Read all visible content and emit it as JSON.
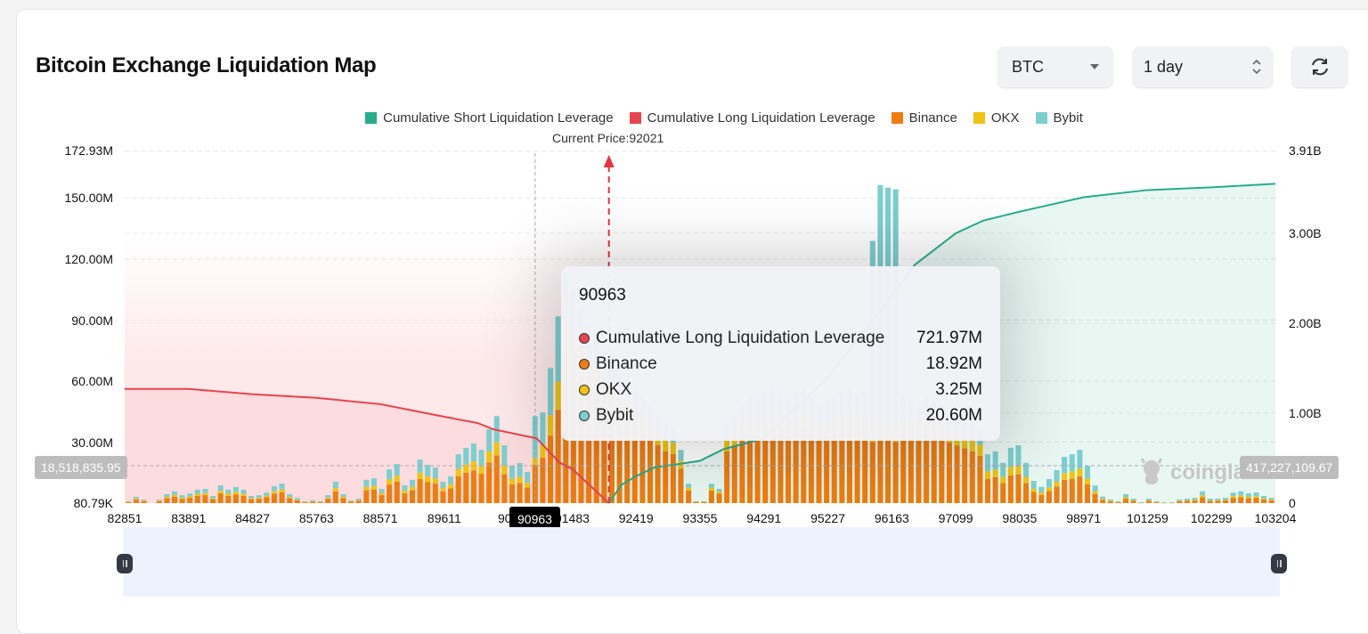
{
  "header": {
    "title": "Bitcoin Exchange Liquidation Map"
  },
  "controls": {
    "coin": "BTC",
    "range": "1 day",
    "refresh_icon": "refresh-icon"
  },
  "colors": {
    "short": "#26ad8c",
    "long": "#e8434f",
    "binance": "#ee7d10",
    "okx": "#f1c40f",
    "bybit": "#7ccfcf"
  },
  "chart_data": {
    "type": "bar",
    "legend": [
      "Cumulative Short Liquidation Leverage",
      "Cumulative Long Liquidation Leverage",
      "Binance",
      "OKX",
      "Bybit"
    ],
    "legend_placement": "top",
    "current_price_label": "Current Price:92021",
    "current_price": 92021,
    "x_ticks": [
      "82851",
      "83891",
      "84827",
      "85763",
      "88571",
      "89611",
      "905",
      "91483",
      "92419",
      "93355",
      "94291",
      "95227",
      "96163",
      "97099",
      "98035",
      "98971",
      "101259",
      "102299",
      "103204"
    ],
    "y_left_ticks": [
      "172.93M",
      "150.00M",
      "120.00M",
      "90.00M",
      "60.00M",
      "30.00M",
      "80.79K"
    ],
    "y_left_range": [
      0,
      172.93
    ],
    "y_left_unit": "M",
    "y_right_ticks": [
      "3.91B",
      "3.00B",
      "2.00B",
      "1.00B",
      "0"
    ],
    "y_right_range": [
      0,
      3.91
    ],
    "y_right_unit": "B",
    "grid": true,
    "series": [
      {
        "name": "Binance",
        "values": [
          0.5,
          1.7,
          0.9,
          0,
          0.9,
          2.4,
          3.1,
          2.1,
          2.6,
          3.6,
          3.9,
          1.9,
          4.8,
          3.6,
          4.3,
          3.6,
          1.9,
          2.1,
          2.9,
          4.6,
          5.3,
          2.4,
          1.4,
          0.5,
          0.7,
          0.5,
          2.1,
          5.8,
          2.4,
          0.7,
          1.2,
          6.3,
          6.7,
          3.9,
          9.1,
          10.6,
          4.8,
          6.3,
          11.8,
          10.3,
          9.6,
          5.8,
          7.2,
          13.2,
          14.9,
          16.1,
          14.4,
          20.0,
          23.5,
          14.2,
          9.2,
          9.9,
          7.7,
          18.92,
          22.3,
          33.2,
          45.9,
          73.8,
          68.2,
          62.5,
          56.8,
          54.0,
          48.3,
          45.4,
          42.6,
          39.8,
          36.9,
          34.1,
          31.3,
          28.4,
          25.5,
          24.1,
          17.0,
          6.2,
          0.6,
          0.6,
          6.2,
          4.6,
          25.5,
          28.4,
          31.3,
          34.1,
          32.7,
          35.5,
          36.9,
          34.1,
          32.7,
          35.5,
          36.9,
          34.1,
          31.3,
          32.7,
          34.1,
          35.5,
          36.9,
          34.1,
          35.5,
          30,
          32,
          31,
          30,
          34.1,
          32.7,
          31.3,
          34.1,
          32.7,
          31.3,
          29.8,
          28.4,
          27.0,
          25.5,
          23.3,
          12.0,
          12.7,
          9.9,
          13.6,
          14.2,
          9.9,
          5.5,
          4.0,
          5.9,
          8.1,
          11.4,
          12.0,
          13.1,
          9.2,
          4.4,
          1.6,
          0.9,
          0.5,
          2.2,
          1.1,
          0.2,
          1.1,
          0.5,
          0.2,
          0.2,
          0.9,
          1.1,
          1.3,
          2.9,
          1.1,
          1.1,
          1.3,
          2.6,
          2.9,
          2.4,
          2.6,
          1.8,
          1.3
        ]
      },
      {
        "name": "OKX",
        "values": [
          0.1,
          0.5,
          0.3,
          0,
          0.3,
          0.7,
          0.9,
          0.6,
          0.7,
          1.0,
          1.0,
          0.5,
          1.3,
          1.0,
          1.2,
          1.0,
          0.5,
          0.6,
          0.8,
          1.2,
          1.4,
          0.7,
          0.4,
          0.1,
          0.2,
          0.1,
          0.6,
          1.6,
          0.7,
          0.2,
          0.3,
          1.7,
          1.8,
          1.0,
          2.5,
          2.9,
          1.3,
          1.7,
          3.2,
          2.8,
          2.6,
          1.6,
          2.0,
          3.6,
          4.1,
          4.4,
          3.9,
          5.4,
          6.4,
          4.3,
          2.8,
          3.0,
          2.3,
          3.25,
          6.7,
          10.0,
          13.8,
          17.0,
          15.7,
          14.4,
          13.1,
          12.5,
          11.1,
          10.5,
          9.8,
          9.2,
          8.5,
          7.9,
          7.2,
          6.6,
          5.9,
          5.6,
          3.9,
          1.4,
          0.1,
          0.1,
          1.4,
          1.0,
          5.9,
          6.6,
          7.2,
          7.9,
          7.5,
          8.2,
          8.5,
          7.9,
          7.5,
          8.2,
          8.5,
          7.9,
          7.2,
          7.5,
          7.9,
          8.2,
          8.5,
          7.9,
          8.2,
          8,
          9,
          8,
          8,
          7.9,
          7.5,
          7.2,
          7.9,
          7.5,
          7.2,
          6.9,
          6.6,
          6.2,
          5.9,
          5.4,
          3.6,
          3.8,
          3.0,
          4.1,
          4.3,
          3.0,
          1.6,
          1.2,
          1.8,
          2.4,
          3.4,
          3.6,
          3.9,
          2.8,
          1.3,
          0.5,
          0.3,
          0.1,
          0.7,
          0.3,
          0.1,
          0.3,
          0.1,
          0.1,
          0.1,
          0.3,
          0.3,
          0.4,
          0.9,
          0.3,
          0.3,
          0.4,
          0.8,
          0.9,
          0.7,
          0.8,
          0.5,
          0.4
        ]
      },
      {
        "name": "Bybit",
        "values": [
          0.3,
          0.9,
          0.5,
          0,
          0.5,
          1.3,
          1.7,
          1.2,
          1.5,
          2.0,
          2.1,
          1.1,
          2.6,
          2.0,
          2.4,
          2.0,
          1.1,
          1.2,
          1.5,
          2.5,
          2.9,
          1.3,
          0.8,
          0.3,
          0.4,
          0.3,
          1.2,
          3.1,
          1.3,
          0.4,
          0.7,
          3.4,
          3.7,
          2.1,
          5.0,
          5.7,
          2.6,
          3.4,
          6.4,
          5.7,
          5.3,
          3.1,
          3.9,
          7.2,
          8.1,
          8.8,
          7.9,
          10.9,
          12.9,
          9.9,
          6.4,
          6.8,
          5.3,
          20.6,
          15.6,
          23.2,
          32.1,
          22.8,
          21.0,
          19.2,
          17.5,
          16.6,
          14.9,
          14.0,
          13.1,
          12.2,
          11.4,
          10.5,
          9.6,
          8.7,
          7.9,
          7.4,
          5.2,
          1.9,
          0.2,
          0.2,
          1.9,
          1.4,
          7.9,
          8.7,
          9.6,
          10.5,
          10.1,
          10.9,
          11.4,
          10.5,
          10.1,
          10.9,
          11.4,
          10.5,
          9.6,
          10.1,
          10.5,
          10.9,
          11.4,
          10.5,
          10.9,
          90.9,
          115.4,
          116.1,
          116.3,
          10.5,
          10.1,
          9.6,
          10.5,
          10.1,
          9.6,
          9.2,
          8.7,
          8.3,
          7.9,
          7.2,
          8.4,
          8.9,
          6.9,
          9.5,
          9.9,
          6.9,
          3.8,
          2.8,
          4.1,
          5.7,
          7.9,
          8.4,
          9.2,
          6.4,
          3.0,
          1.1,
          0.6,
          0.3,
          1.5,
          0.8,
          0.1,
          0.8,
          0.3,
          0.1,
          0.1,
          0.6,
          0.8,
          0.9,
          2.0,
          0.8,
          0.8,
          0.9,
          1.8,
          2.0,
          1.7,
          1.8,
          1.2,
          0.9
        ]
      }
    ],
    "lines": [
      {
        "name": "Cumulative Long Liquidation Leverage",
        "axis": "right",
        "points": [
          [
            82851,
            1.27
          ],
          [
            83891,
            1.27
          ],
          [
            84827,
            1.21
          ],
          [
            85763,
            1.17
          ],
          [
            88571,
            1.1
          ],
          [
            89611,
            0.96
          ],
          [
            90100,
            0.89
          ],
          [
            90330,
            0.82
          ],
          [
            90963,
            0.72
          ],
          [
            91300,
            0.45
          ],
          [
            91483,
            0.38
          ],
          [
            92021,
            0
          ]
        ]
      },
      {
        "name": "Cumulative Short Liquidation Leverage",
        "axis": "right",
        "points": [
          [
            92021,
            0
          ],
          [
            92200,
            0.2
          ],
          [
            92419,
            0.3
          ],
          [
            92700,
            0.4
          ],
          [
            93000,
            0.43
          ],
          [
            93355,
            0.47
          ],
          [
            93700,
            0.6
          ],
          [
            94291,
            0.72
          ],
          [
            95227,
            1.4
          ],
          [
            96163,
            2.3
          ],
          [
            96500,
            2.65
          ],
          [
            97099,
            3.0
          ],
          [
            97500,
            3.14
          ],
          [
            98035,
            3.24
          ],
          [
            98971,
            3.4
          ],
          [
            101259,
            3.48
          ],
          [
            102299,
            3.51
          ],
          [
            103204,
            3.55
          ]
        ]
      }
    ],
    "crosshair": {
      "x_label": "90963",
      "left_value": "18,518,835.95",
      "right_value": "417,227,109.67",
      "bar_index": 53
    }
  },
  "tooltip": {
    "title": "90963",
    "rows": [
      {
        "label": "Cumulative Long Liquidation Leverage",
        "value": "721.97M"
      },
      {
        "label": "Binance",
        "value": "18.92M"
      },
      {
        "label": "OKX",
        "value": "3.25M"
      },
      {
        "label": "Bybit",
        "value": "20.60M"
      }
    ]
  },
  "watermark": "coinglass"
}
